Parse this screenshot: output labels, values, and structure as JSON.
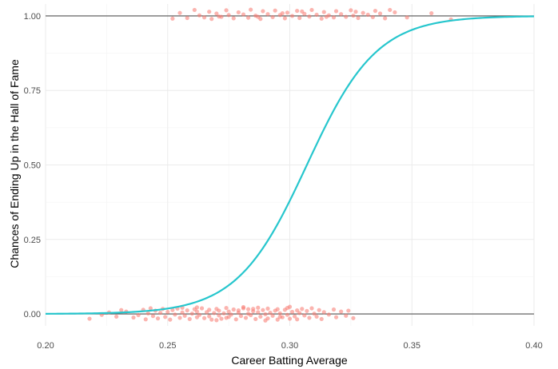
{
  "chart_data": {
    "type": "scatter",
    "title": "",
    "xlabel": "Career Batting Average",
    "ylabel": "Chances of Ending Up in the Hall of Fame",
    "xlim": [
      0.2,
      0.4
    ],
    "ylim": [
      -0.04,
      1.04
    ],
    "x_ticks": [
      0.2,
      0.25,
      0.3,
      0.35,
      0.4
    ],
    "x_tick_labels": [
      "0.20",
      "0.25",
      "0.30",
      "0.35",
      "0.40"
    ],
    "y_ticks": [
      0.0,
      0.25,
      0.5,
      0.75,
      1.0
    ],
    "y_tick_labels": [
      "0.00",
      "0.25",
      "0.50",
      "0.75",
      "1.00"
    ],
    "reference_lines": [
      0,
      1
    ],
    "grid": true,
    "legend": "none",
    "colors": {
      "points": "#f8766d",
      "curve": "#26c6cd",
      "reference": "#555555",
      "grid": "#ebebeb"
    },
    "logistic_fit": {
      "midpoint": 0.307,
      "slope": 70,
      "x_range": [
        0.2,
        0.4
      ]
    },
    "series": [
      {
        "kind": "points",
        "name": "",
        "points": [
          [
            0.218,
            -0.016
          ],
          [
            0.223,
            -0.003
          ],
          [
            0.226,
            0.005
          ],
          [
            0.229,
            -0.009
          ],
          [
            0.231,
            0.013
          ],
          [
            0.233,
            0.008
          ],
          [
            0.236,
            -0.012
          ],
          [
            0.238,
            -0.004
          ],
          [
            0.24,
            0.014
          ],
          [
            0.241,
            -0.018
          ],
          [
            0.242,
            0.002
          ],
          [
            0.243,
            0.019
          ],
          [
            0.244,
            -0.007
          ],
          [
            0.245,
            0.011
          ],
          [
            0.246,
            -0.015
          ],
          [
            0.247,
            0.004
          ],
          [
            0.248,
            0.017
          ],
          [
            0.249,
            -0.01
          ],
          [
            0.25,
            0.007
          ],
          [
            0.251,
            -0.019
          ],
          [
            0.252,
            0.013
          ],
          [
            0.253,
            -0.002
          ],
          [
            0.254,
            0.018
          ],
          [
            0.255,
            -0.013
          ],
          [
            0.256,
            0.005
          ],
          [
            0.256,
            0.021
          ],
          [
            0.257,
            -0.006
          ],
          [
            0.258,
            0.012
          ],
          [
            0.259,
            -0.017
          ],
          [
            0.26,
            0.001
          ],
          [
            0.261,
            0.016
          ],
          [
            0.262,
            -0.011
          ],
          [
            0.262,
            0.008
          ],
          [
            0.263,
            -0.003
          ],
          [
            0.264,
            0.019
          ],
          [
            0.265,
            -0.014
          ],
          [
            0.266,
            0.006
          ],
          [
            0.267,
            -0.008
          ],
          [
            0.267,
            0.014
          ],
          [
            0.268,
            -0.019
          ],
          [
            0.269,
            0.003
          ],
          [
            0.27,
            0.017
          ],
          [
            0.271,
            -0.005
          ],
          [
            0.271,
            0.011
          ],
          [
            0.272,
            -0.016
          ],
          [
            0.273,
            0.002
          ],
          [
            0.274,
            0.02
          ],
          [
            0.275,
            -0.01
          ],
          [
            0.275,
            0.008
          ],
          [
            0.276,
            -0.002
          ],
          [
            0.277,
            0.015
          ],
          [
            0.278,
            -0.018
          ],
          [
            0.279,
            0.004
          ],
          [
            0.279,
            0.012
          ],
          [
            0.28,
            -0.007
          ],
          [
            0.281,
            0.019
          ],
          [
            0.282,
            -0.013
          ],
          [
            0.283,
            0.001
          ],
          [
            0.283,
            0.016
          ],
          [
            0.284,
            -0.004
          ],
          [
            0.285,
            0.009
          ],
          [
            0.286,
            -0.017
          ],
          [
            0.287,
            0.006
          ],
          [
            0.287,
            0.021
          ],
          [
            0.288,
            -0.009
          ],
          [
            0.289,
            0.013
          ],
          [
            0.29,
            -0.001
          ],
          [
            0.291,
            0.018
          ],
          [
            0.291,
            -0.015
          ],
          [
            0.292,
            0.004
          ],
          [
            0.293,
            -0.006
          ],
          [
            0.294,
            0.011
          ],
          [
            0.295,
            -0.019
          ],
          [
            0.295,
            0.016
          ],
          [
            0.296,
            0.002
          ],
          [
            0.297,
            -0.011
          ],
          [
            0.298,
            0.014
          ],
          [
            0.299,
            -0.003
          ],
          [
            0.299,
            0.02
          ],
          [
            0.3,
            -0.016
          ],
          [
            0.301,
            0.007
          ],
          [
            0.302,
            -0.008
          ],
          [
            0.303,
            0.012
          ],
          [
            0.303,
            -0.018
          ],
          [
            0.304,
            0.003
          ],
          [
            0.305,
            0.017
          ],
          [
            0.306,
            -0.005
          ],
          [
            0.307,
            0.01
          ],
          [
            0.308,
            -0.013
          ],
          [
            0.309,
            0.019
          ],
          [
            0.31,
            0.001
          ],
          [
            0.311,
            -0.009
          ],
          [
            0.312,
            0.013
          ],
          [
            0.313,
            -0.017
          ],
          [
            0.314,
            0.006
          ],
          [
            0.316,
            -0.002
          ],
          [
            0.318,
            0.015
          ],
          [
            0.319,
            -0.011
          ],
          [
            0.321,
            0.008
          ],
          [
            0.323,
            -0.006
          ],
          [
            0.324,
            0.011
          ],
          [
            0.326,
            -0.014
          ],
          [
            0.262,
            0.022
          ],
          [
            0.27,
            -0.021
          ],
          [
            0.281,
            0.023
          ],
          [
            0.29,
            -0.022
          ],
          [
            0.3,
            0.024
          ],
          [
            0.274,
            -0.013
          ],
          [
            0.285,
            0.017
          ],
          [
            0.296,
            -0.01
          ],
          [
            0.252,
            0.991
          ],
          [
            0.255,
            1.01
          ],
          [
            0.258,
            0.993
          ],
          [
            0.261,
            1.02
          ],
          [
            0.263,
            1.002
          ],
          [
            0.265,
            0.995
          ],
          [
            0.267,
            1.014
          ],
          [
            0.268,
            0.99
          ],
          [
            0.27,
            1.008
          ],
          [
            0.272,
            0.997
          ],
          [
            0.274,
            1.019
          ],
          [
            0.275,
            1.003
          ],
          [
            0.277,
            0.992
          ],
          [
            0.279,
            1.012
          ],
          [
            0.281,
            1.005
          ],
          [
            0.283,
            0.994
          ],
          [
            0.284,
            1.021
          ],
          [
            0.286,
            1.001
          ],
          [
            0.288,
            0.99
          ],
          [
            0.289,
            1.016
          ],
          [
            0.291,
            1.006
          ],
          [
            0.293,
            0.996
          ],
          [
            0.294,
            1.018
          ],
          [
            0.296,
            1.003
          ],
          [
            0.298,
            0.992
          ],
          [
            0.299,
            1.011
          ],
          [
            0.301,
            1.0
          ],
          [
            0.303,
            1.017
          ],
          [
            0.304,
            0.993
          ],
          [
            0.306,
            1.007
          ],
          [
            0.308,
            0.998
          ],
          [
            0.309,
            1.02
          ],
          [
            0.311,
            1.004
          ],
          [
            0.313,
            0.991
          ],
          [
            0.314,
            1.013
          ],
          [
            0.316,
            1.002
          ],
          [
            0.318,
            0.995
          ],
          [
            0.319,
            1.016
          ],
          [
            0.321,
            1.006
          ],
          [
            0.323,
            0.997
          ],
          [
            0.325,
            1.019
          ],
          [
            0.326,
            1.001
          ],
          [
            0.328,
            0.993
          ],
          [
            0.33,
            1.01
          ],
          [
            0.332,
            1.004
          ],
          [
            0.334,
            0.996
          ],
          [
            0.335,
            1.017
          ],
          [
            0.337,
            1.008
          ],
          [
            0.339,
            0.992
          ],
          [
            0.341,
            1.02
          ],
          [
            0.343,
            1.012
          ],
          [
            0.348,
            0.995
          ],
          [
            0.358,
            1.009
          ],
          [
            0.366,
            0.988
          ],
          [
            0.271,
            0.998
          ],
          [
            0.297,
            1.009
          ],
          [
            0.315,
            0.997
          ],
          [
            0.327,
            1.014
          ],
          [
            0.287,
            0.997
          ],
          [
            0.305,
            1.015
          ]
        ]
      },
      {
        "kind": "curve",
        "name": "",
        "function": "logistic"
      }
    ]
  }
}
